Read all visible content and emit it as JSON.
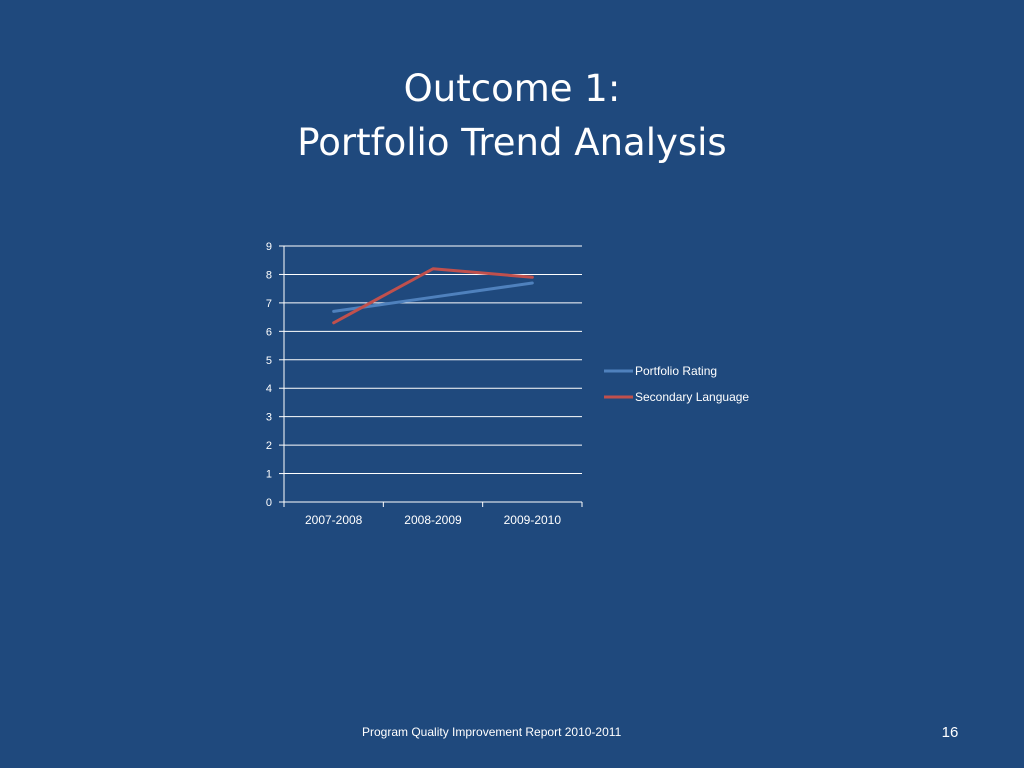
{
  "slide": {
    "title_line1": "Outcome 1:",
    "title_line2": "Portfolio Trend Analysis",
    "footer": "Program Quality Improvement Report 2010-2011",
    "page_number": "16"
  },
  "colors": {
    "background": "#1F497D",
    "gridline": "#FFFFFF",
    "text": "#FFFFFF"
  },
  "chart_data": {
    "type": "line",
    "title": "",
    "xlabel": "",
    "ylabel": "",
    "categories": [
      "2007-2008",
      "2008-2009",
      "2009-2010"
    ],
    "ylim": [
      0,
      9
    ],
    "yticks": [
      0,
      1,
      2,
      3,
      4,
      5,
      6,
      7,
      8,
      9
    ],
    "grid": true,
    "legend_position": "right",
    "series": [
      {
        "name": "Portfolio Rating",
        "color": "#4F81BD",
        "values": [
          6.7,
          7.2,
          7.7
        ]
      },
      {
        "name": "Secondary Language",
        "color": "#C0504D",
        "values": [
          6.3,
          8.2,
          7.9
        ]
      }
    ]
  }
}
